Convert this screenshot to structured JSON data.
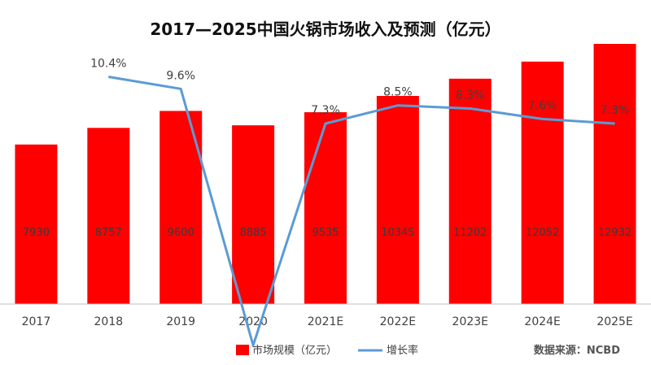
{
  "title": "2017—2025中国火锅市场收入及预测（亿元）",
  "source": "数据来源：NCBD",
  "colors": {
    "bar": "#ff0000",
    "line": "#5b9bd5",
    "axis": "#bfbfbf",
    "text": "#404040"
  },
  "chart_data": {
    "type": "bar",
    "categories": [
      "2017",
      "2018",
      "2019",
      "2020",
      "2021E",
      "2022E",
      "2023E",
      "2024E",
      "2025E"
    ],
    "series": [
      {
        "name": "市场规模（亿元）",
        "type": "bar",
        "values": [
          7930,
          8757,
          9600,
          8885,
          9535,
          10345,
          11202,
          12052,
          12932
        ],
        "labels": [
          "7930",
          "8757",
          "9600",
          "8885",
          "9535",
          "10345",
          "11202",
          "12052",
          "12932"
        ]
      },
      {
        "name": "增长率",
        "type": "line",
        "values": [
          null,
          10.4,
          9.6,
          -7.4,
          7.3,
          8.5,
          8.3,
          7.6,
          7.3
        ],
        "labels": [
          "",
          "10.4%",
          "9.6%",
          "",
          "7.3%",
          "8.5%",
          "8.3%",
          "7.6%",
          "7.3%"
        ]
      }
    ],
    "legend": "bottom",
    "grid": false
  }
}
